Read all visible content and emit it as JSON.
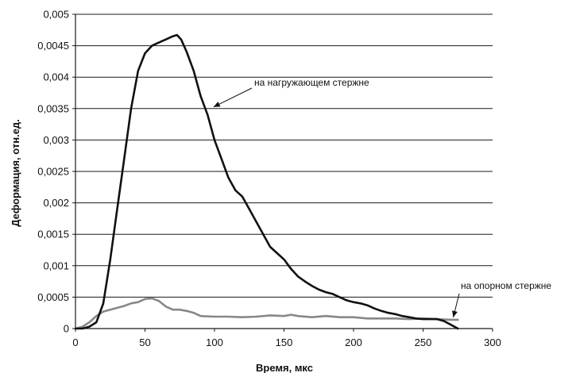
{
  "chart_data": {
    "type": "line",
    "xlabel": "Время, мкс",
    "ylabel": "Деформация, отн.ед.",
    "xlim": [
      0,
      300
    ],
    "ylim": [
      0,
      0.005
    ],
    "grid": "horizontal",
    "x_ticks": [
      "0",
      "50",
      "100",
      "150",
      "200",
      "250",
      "300"
    ],
    "y_ticks": [
      "0",
      "0,0005",
      "0,001",
      "0,0015",
      "0,002",
      "0,0025",
      "0,003",
      "0,0035",
      "0,004",
      "0,0045",
      "0,005"
    ],
    "series": [
      {
        "name": "на нагружающем стержне",
        "color": "#111111",
        "points": [
          [
            0,
            0
          ],
          [
            5,
            0
          ],
          [
            10,
            3e-05
          ],
          [
            15,
            0.0001
          ],
          [
            20,
            0.0004
          ],
          [
            25,
            0.0011
          ],
          [
            30,
            0.0019
          ],
          [
            35,
            0.0027
          ],
          [
            40,
            0.0035
          ],
          [
            45,
            0.0041
          ],
          [
            50,
            0.00438
          ],
          [
            55,
            0.0045
          ],
          [
            60,
            0.00455
          ],
          [
            65,
            0.0046
          ],
          [
            70,
            0.00465
          ],
          [
            73,
            0.00467
          ],
          [
            76,
            0.0046
          ],
          [
            80,
            0.0044
          ],
          [
            85,
            0.0041
          ],
          [
            90,
            0.0037
          ],
          [
            95,
            0.0034
          ],
          [
            100,
            0.003
          ],
          [
            105,
            0.0027
          ],
          [
            110,
            0.0024
          ],
          [
            115,
            0.0022
          ],
          [
            120,
            0.0021
          ],
          [
            125,
            0.0019
          ],
          [
            130,
            0.0017
          ],
          [
            135,
            0.0015
          ],
          [
            140,
            0.0013
          ],
          [
            145,
            0.0012
          ],
          [
            150,
            0.0011
          ],
          [
            155,
            0.00095
          ],
          [
            160,
            0.00083
          ],
          [
            165,
            0.00075
          ],
          [
            170,
            0.00068
          ],
          [
            175,
            0.00062
          ],
          [
            180,
            0.00058
          ],
          [
            185,
            0.00055
          ],
          [
            190,
            0.0005
          ],
          [
            195,
            0.00045
          ],
          [
            200,
            0.00042
          ],
          [
            205,
            0.0004
          ],
          [
            210,
            0.00037
          ],
          [
            215,
            0.00032
          ],
          [
            220,
            0.00028
          ],
          [
            225,
            0.00025
          ],
          [
            230,
            0.00023
          ],
          [
            235,
            0.0002
          ],
          [
            240,
            0.00018
          ],
          [
            245,
            0.00016
          ],
          [
            250,
            0.00015
          ],
          [
            255,
            0.00015
          ],
          [
            260,
            0.00015
          ],
          [
            265,
            0.00012
          ],
          [
            270,
            6e-05
          ],
          [
            275,
            0
          ]
        ]
      },
      {
        "name": "на опорном стержне",
        "color": "#888888",
        "points": [
          [
            0,
            0
          ],
          [
            5,
            3e-05
          ],
          [
            10,
            0.0001
          ],
          [
            15,
            0.0002
          ],
          [
            20,
            0.00027
          ],
          [
            25,
            0.0003
          ],
          [
            30,
            0.00033
          ],
          [
            35,
            0.00036
          ],
          [
            40,
            0.0004
          ],
          [
            45,
            0.00042
          ],
          [
            50,
            0.00047
          ],
          [
            55,
            0.00048
          ],
          [
            60,
            0.00044
          ],
          [
            65,
            0.00035
          ],
          [
            70,
            0.0003
          ],
          [
            75,
            0.0003
          ],
          [
            80,
            0.00028
          ],
          [
            85,
            0.00025
          ],
          [
            90,
            0.0002
          ],
          [
            100,
            0.00019
          ],
          [
            110,
            0.00019
          ],
          [
            120,
            0.00018
          ],
          [
            130,
            0.00019
          ],
          [
            140,
            0.00021
          ],
          [
            150,
            0.0002
          ],
          [
            155,
            0.00022
          ],
          [
            160,
            0.0002
          ],
          [
            170,
            0.00018
          ],
          [
            180,
            0.0002
          ],
          [
            190,
            0.00018
          ],
          [
            200,
            0.00018
          ],
          [
            210,
            0.00016
          ],
          [
            220,
            0.00016
          ],
          [
            230,
            0.00016
          ],
          [
            240,
            0.00015
          ],
          [
            250,
            0.00016
          ],
          [
            260,
            0.00015
          ],
          [
            270,
            0.00014
          ],
          [
            275,
            0.00014
          ]
        ]
      }
    ],
    "annotations": [
      {
        "text": "на нагружающем стержне",
        "series": 0,
        "target": [
          97,
          0.0035
        ]
      },
      {
        "text": "на опорном стержне",
        "series": 1,
        "target": [
          270,
          0.00014
        ]
      }
    ]
  }
}
